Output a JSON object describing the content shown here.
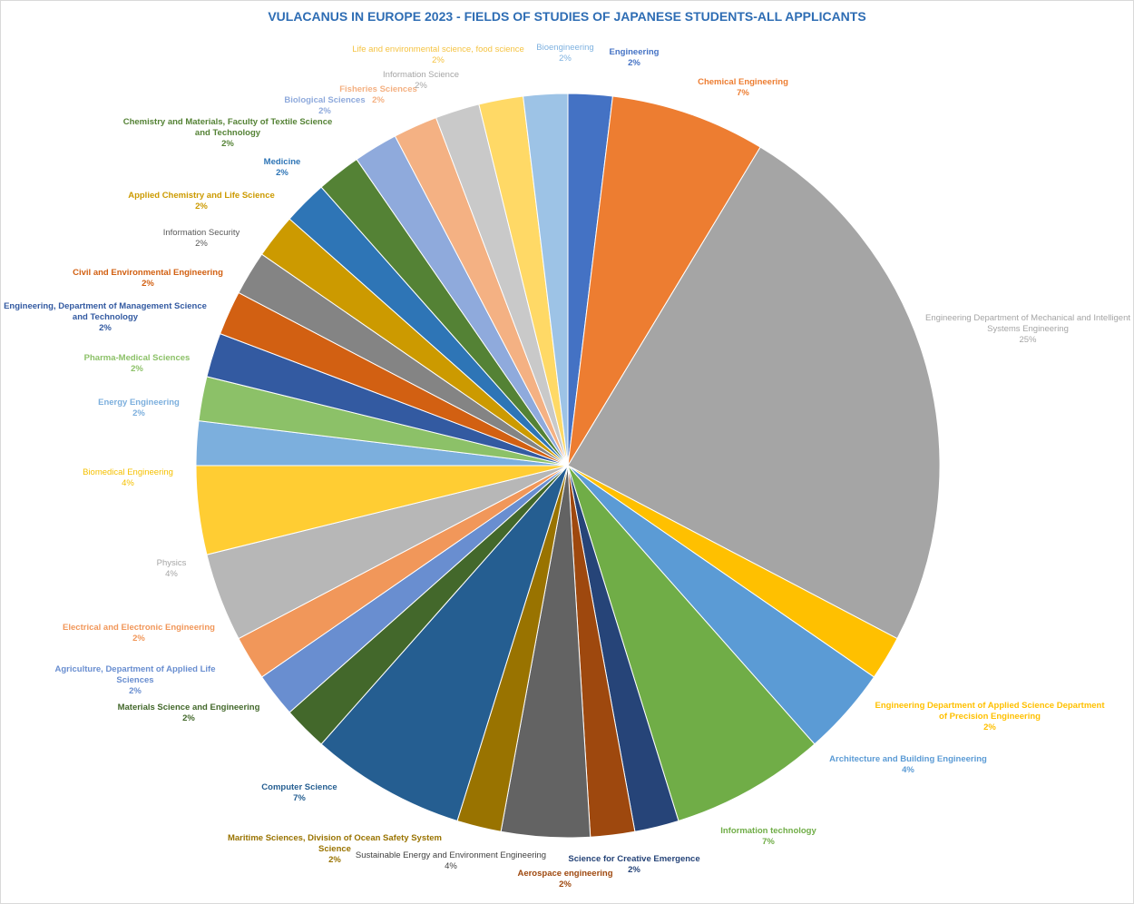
{
  "chart_data": {
    "type": "pie",
    "title": "VULACANUS IN EUROPE 2023 - FIELDS OF STUDIES OF JAPANESE STUDENTS-ALL APPLICANTS",
    "categories": [
      "Engineering",
      "Chemical Engineering",
      "Engineering Department of Mechanical and Intelligent Systems Engineering",
      "Engineering Department of Applied Science Department of Precision Engineering",
      "Architecture and Building Engineering",
      "Information technology",
      "Science for Creative Emergence",
      "Aerospace engineering",
      "Sustainable Energy and Environment Engineering",
      "Maritime Sciences, Division of Ocean Safety System Science",
      "Computer Science",
      "Materials Science and Engineering",
      "Agriculture, Department of Applied Life Sciences",
      "Electrical and Electronic Engineering",
      "Physics",
      "Biomedical Engineering",
      "Energy Engineering",
      "Pharma-Medical Sciences",
      "Engineering, Department of Management Science and Technology",
      "Civil and Environmental Engineering",
      "Information Security",
      "Applied Chemistry and Life Science",
      "Medicine",
      "Chemistry and Materials, Faculty of Textile Science and Technology",
      "Biological Sciences",
      "Fisheries Sciences",
      "Information Science",
      "Life and environmental science, food science",
      "Bioengineering"
    ],
    "values": [
      2,
      7,
      25,
      2,
      4,
      7,
      2,
      2,
      4,
      2,
      7,
      2,
      2,
      2,
      4,
      4,
      2,
      2,
      2,
      2,
      2,
      2,
      2,
      2,
      2,
      2,
      2,
      2,
      2
    ],
    "value_labels": [
      "2%",
      "7%",
      "25%",
      "2%",
      "4%",
      "7%",
      "2%",
      "2%",
      "4%",
      "2%",
      "7%",
      "2%",
      "2%",
      "2%",
      "4%",
      "4%",
      "2%",
      "2%",
      "2%",
      "2%",
      "2%",
      "2%",
      "2%",
      "2%",
      "2%",
      "2%",
      "2%",
      "2%",
      "2%"
    ],
    "colors": [
      "#4472c4",
      "#ed7d31",
      "#a5a5a5",
      "#ffc000",
      "#5b9bd5",
      "#70ad47",
      "#264478",
      "#9e480e",
      "#636363",
      "#997300",
      "#255e91",
      "#43682b",
      "#698ed0",
      "#f1975a",
      "#b7b7b7",
      "#ffcd33",
      "#7cafdd",
      "#8cc168",
      "#335aa1",
      "#d26012",
      "#848484",
      "#cc9a00",
      "#2e75b6",
      "#548235",
      "#8faadc",
      "#f4b183",
      "#c9c9c9",
      "#ffd966",
      "#9dc3e6"
    ]
  }
}
